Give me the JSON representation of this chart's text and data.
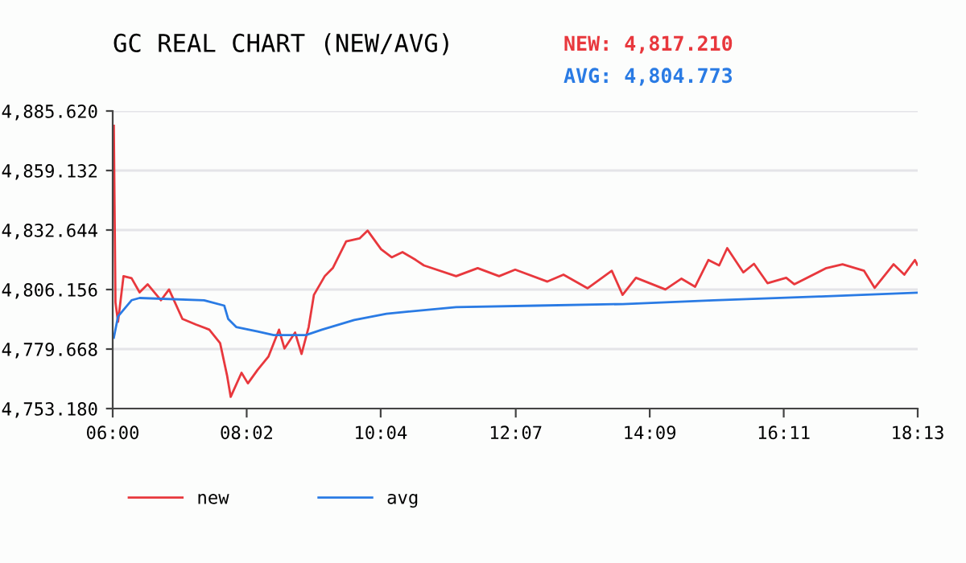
{
  "chart_data": {
    "type": "line",
    "title": "GC REAL CHART (NEW/AVG)",
    "annotations": [
      "NEW: 4,817.210",
      "AVG: 4,804.773"
    ],
    "xlim": [
      6.0,
      18.2167
    ],
    "xticks": [
      {
        "value": 6.0,
        "label": "06:00"
      },
      {
        "value": 8.0333,
        "label": "08:02"
      },
      {
        "value": 10.0667,
        "label": "10:04"
      },
      {
        "value": 12.1167,
        "label": "12:07"
      },
      {
        "value": 14.15,
        "label": "14:09"
      },
      {
        "value": 16.1833,
        "label": "16:11"
      },
      {
        "value": 18.2167,
        "label": "18:13"
      }
    ],
    "ylim": [
      4753.18,
      4885.62
    ],
    "yticks": [
      {
        "value": 4753.18,
        "label": "4,753.180"
      },
      {
        "value": 4779.668,
        "label": "4,779.668"
      },
      {
        "value": 4806.156,
        "label": "4,806.156"
      },
      {
        "value": 4832.644,
        "label": "4,832.644"
      },
      {
        "value": 4859.132,
        "label": "4,859.132"
      },
      {
        "value": 4885.62,
        "label": "4,885.620"
      }
    ],
    "grid": "y",
    "legend": "bottom",
    "marker": "none",
    "line_style": "solid",
    "series": [
      {
        "name": "new",
        "color": "#e8383d",
        "x": [
          6.017,
          6.042,
          6.081,
          6.164,
          6.286,
          6.408,
          6.53,
          6.733,
          6.855,
          7.058,
          7.263,
          7.466,
          7.63,
          7.735,
          7.791,
          7.955,
          8.052,
          8.199,
          8.363,
          8.524,
          8.607,
          8.768,
          8.866,
          8.974,
          9.054,
          9.218,
          9.34,
          9.543,
          9.746,
          9.868,
          10.073,
          10.234,
          10.398,
          10.601,
          10.723,
          11.212,
          11.539,
          11.864,
          12.108,
          12.597,
          12.841,
          13.208,
          13.574,
          13.738,
          13.941,
          14.388,
          14.632,
          14.838,
          15.04,
          15.204,
          15.326,
          15.571,
          15.732,
          15.937,
          16.221,
          16.343,
          16.831,
          17.076,
          17.403,
          17.564,
          17.85,
          18.014,
          18.175,
          18.21
        ],
        "values": [
          4879.0,
          4800.4,
          4791.8,
          4812.1,
          4811.2,
          4804.9,
          4808.5,
          4801.4,
          4806.2,
          4793.1,
          4790.6,
          4788.3,
          4782.3,
          4768.0,
          4758.4,
          4769.1,
          4764.4,
          4770.4,
          4776.3,
          4788.3,
          4779.9,
          4787.0,
          4777.5,
          4789.5,
          4803.8,
          4812.1,
          4815.7,
          4827.6,
          4828.9,
          4832.4,
          4824.1,
          4820.5,
          4822.8,
          4819.3,
          4816.9,
          4812.1,
          4815.7,
          4812.1,
          4815.0,
          4809.7,
          4812.8,
          4806.7,
          4814.5,
          4803.8,
          4811.4,
          4806.2,
          4811.0,
          4807.4,
          4819.3,
          4816.9,
          4824.6,
          4813.8,
          4817.6,
          4809.0,
          4811.4,
          4808.5,
          4815.7,
          4817.4,
          4814.5,
          4806.9,
          4817.4,
          4812.8,
          4819.3,
          4817.2
        ]
      },
      {
        "name": "avg",
        "color": "#2a7be4",
        "x": [
          6.017,
          6.081,
          6.286,
          6.408,
          7.385,
          7.693,
          7.752,
          7.874,
          8.199,
          8.443,
          8.932,
          9.176,
          9.665,
          10.154,
          10.398,
          11.212,
          12.433,
          13.738,
          15.121,
          16.751,
          18.21
        ],
        "values": [
          4784.7,
          4794.2,
          4801.4,
          4802.4,
          4801.4,
          4799.0,
          4793.1,
          4789.5,
          4787.5,
          4785.9,
          4785.9,
          4788.3,
          4792.6,
          4795.4,
          4796.1,
          4798.3,
          4799.0,
          4799.7,
          4801.4,
          4803.1,
          4804.8
        ]
      }
    ]
  }
}
